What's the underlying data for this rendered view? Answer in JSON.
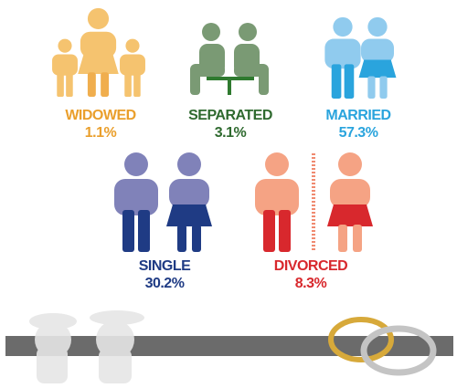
{
  "items": [
    {
      "label": "WIDOWED",
      "value": "1.1%"
    },
    {
      "label": "SEPARATED",
      "value": "3.1%"
    },
    {
      "label": "MARRIED",
      "value": "57.3%"
    },
    {
      "label": "SINGLE",
      "value": "30.2%"
    },
    {
      "label": "DIVORCED",
      "value": "8.3%"
    }
  ]
}
